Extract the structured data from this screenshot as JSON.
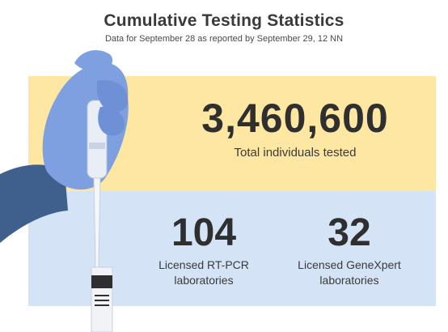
{
  "header": {
    "title": "Cumulative Testing Statistics",
    "subtitle": "Data for September 28 as reported by September 29, 12 NN"
  },
  "total": {
    "value": "3,460,600",
    "label": "Total individuals tested"
  },
  "stats": [
    {
      "value": "104",
      "label_line1": "Licensed RT-PCR",
      "label_line2": "laboratories"
    },
    {
      "value": "32",
      "label_line1": "Licensed GeneXpert",
      "label_line2": "laboratories"
    }
  ],
  "illustration": {
    "icon": "gloved-hand-pipette-icon",
    "colors": {
      "sleeve": "#3f5f8c",
      "glove": "#7e9fe0",
      "pipette": "#e9eef6",
      "tube_band": "#2f2f2f"
    }
  }
}
